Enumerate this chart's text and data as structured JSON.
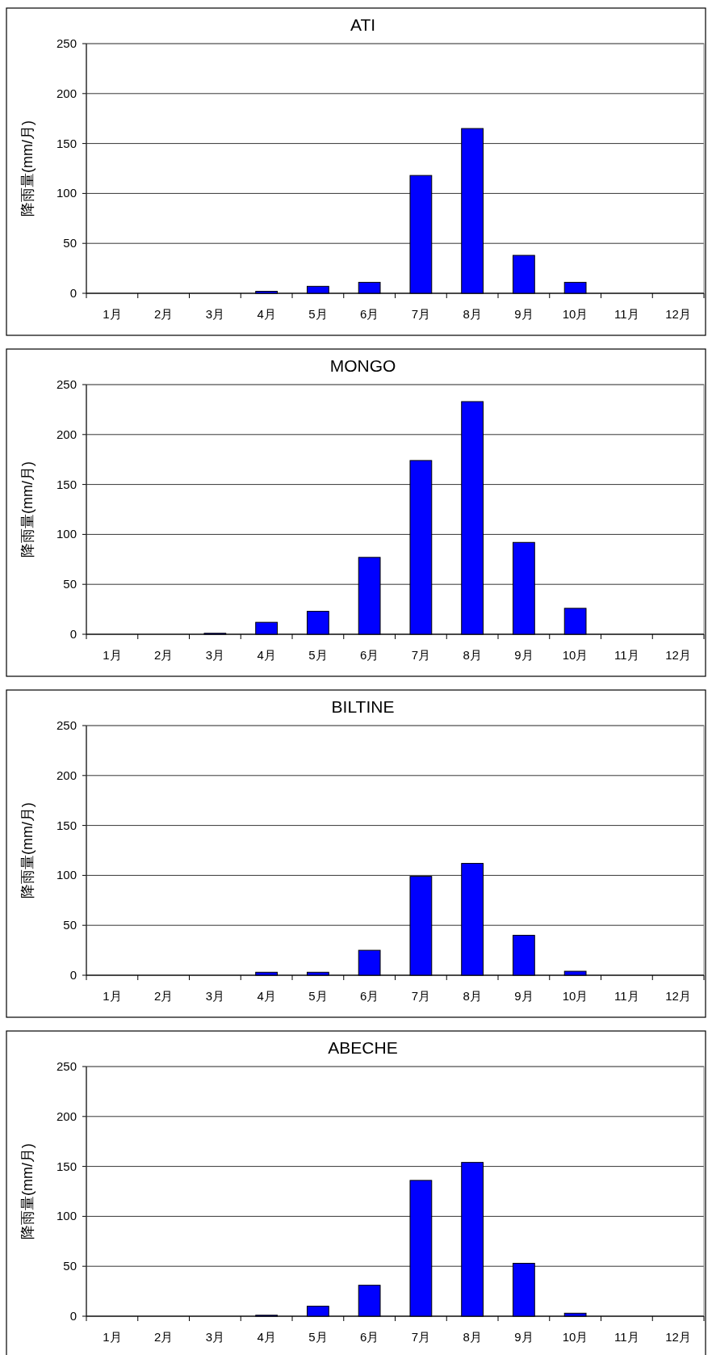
{
  "chart_data": [
    {
      "type": "bar",
      "title": "ATI",
      "ylabel": "降雨量(mm/月)",
      "categories": [
        "1月",
        "2月",
        "3月",
        "4月",
        "5月",
        "6月",
        "7月",
        "8月",
        "9月",
        "10月",
        "11月",
        "12月"
      ],
      "values": [
        0,
        0,
        0,
        2,
        7,
        11,
        118,
        165,
        38,
        11,
        0,
        0
      ],
      "color": "#0000ff",
      "ylim": [
        0,
        250
      ],
      "yticks": [
        0,
        50,
        100,
        150,
        200,
        250
      ],
      "grid": "y"
    },
    {
      "type": "bar",
      "title": "MONGO",
      "ylabel": "降雨量(mm/月)",
      "categories": [
        "1月",
        "2月",
        "3月",
        "4月",
        "5月",
        "6月",
        "7月",
        "8月",
        "9月",
        "10月",
        "11月",
        "12月"
      ],
      "values": [
        0,
        0,
        1,
        12,
        23,
        77,
        174,
        233,
        92,
        26,
        0,
        0
      ],
      "color": "#0000ff",
      "ylim": [
        0,
        250
      ],
      "yticks": [
        0,
        50,
        100,
        150,
        200,
        250
      ],
      "grid": "y"
    },
    {
      "type": "bar",
      "title": "BILTINE",
      "ylabel": "降雨量(mm/月)",
      "categories": [
        "1月",
        "2月",
        "3月",
        "4月",
        "5月",
        "6月",
        "7月",
        "8月",
        "9月",
        "10月",
        "11月",
        "12月"
      ],
      "values": [
        0,
        0,
        0,
        3,
        3,
        25,
        99,
        112,
        40,
        4,
        0,
        0
      ],
      "color": "#0000ff",
      "ylim": [
        0,
        250
      ],
      "yticks": [
        0,
        50,
        100,
        150,
        200,
        250
      ],
      "grid": "y"
    },
    {
      "type": "bar",
      "title": "ABECHE",
      "ylabel": "降雨量(mm/月)",
      "categories": [
        "1月",
        "2月",
        "3月",
        "4月",
        "5月",
        "6月",
        "7月",
        "8月",
        "9月",
        "10月",
        "11月",
        "12月"
      ],
      "values": [
        0,
        0,
        0,
        1,
        10,
        31,
        136,
        154,
        53,
        3,
        0,
        0
      ],
      "color": "#0000ff",
      "ylim": [
        0,
        250
      ],
      "yticks": [
        0,
        50,
        100,
        150,
        200,
        250
      ],
      "grid": "y"
    }
  ]
}
